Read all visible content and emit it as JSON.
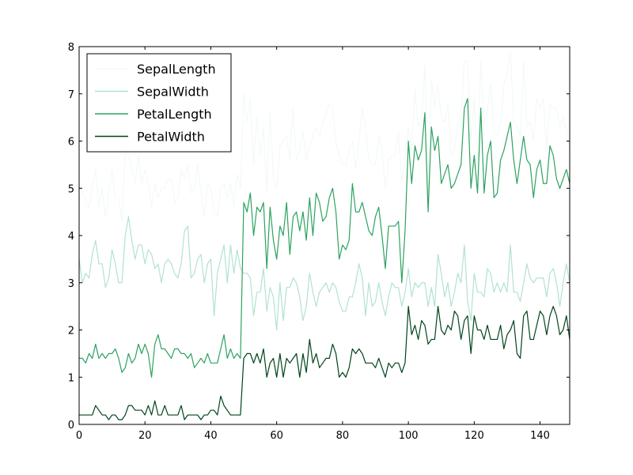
{
  "chart_data": {
    "type": "line",
    "title": "",
    "xlabel": "",
    "ylabel": "",
    "xlim": [
      0,
      149
    ],
    "ylim": [
      0,
      8
    ],
    "x_ticks": [
      "0",
      "20",
      "40",
      "60",
      "80",
      "100",
      "120",
      "140"
    ],
    "y_ticks": [
      "0",
      "1",
      "2",
      "3",
      "4",
      "5",
      "6",
      "7",
      "8"
    ],
    "grid": false,
    "legend_position": "top-left",
    "x": [
      0,
      1,
      2,
      3,
      4,
      5,
      6,
      7,
      8,
      9,
      10,
      11,
      12,
      13,
      14,
      15,
      16,
      17,
      18,
      19,
      20,
      21,
      22,
      23,
      24,
      25,
      26,
      27,
      28,
      29,
      30,
      31,
      32,
      33,
      34,
      35,
      36,
      37,
      38,
      39,
      40,
      41,
      42,
      43,
      44,
      45,
      46,
      47,
      48,
      49,
      50,
      51,
      52,
      53,
      54,
      55,
      56,
      57,
      58,
      59,
      60,
      61,
      62,
      63,
      64,
      65,
      66,
      67,
      68,
      69,
      70,
      71,
      72,
      73,
      74,
      75,
      76,
      77,
      78,
      79,
      80,
      81,
      82,
      83,
      84,
      85,
      86,
      87,
      88,
      89,
      90,
      91,
      92,
      93,
      94,
      95,
      96,
      97,
      98,
      99,
      100,
      101,
      102,
      103,
      104,
      105,
      106,
      107,
      108,
      109,
      110,
      111,
      112,
      113,
      114,
      115,
      116,
      117,
      118,
      119,
      120,
      121,
      122,
      123,
      124,
      125,
      126,
      127,
      128,
      129,
      130,
      131,
      132,
      133,
      134,
      135,
      136,
      137,
      138,
      139,
      140,
      141,
      142,
      143,
      144,
      145,
      146,
      147,
      148,
      149
    ],
    "series": [
      {
        "name": "SepalLength",
        "color": "#f2faf6",
        "values": [
          5.1,
          4.9,
          4.7,
          4.6,
          5.0,
          5.4,
          4.6,
          5.0,
          4.4,
          4.9,
          5.4,
          4.8,
          4.8,
          4.3,
          5.8,
          5.7,
          5.4,
          5.1,
          5.7,
          5.1,
          5.4,
          5.1,
          4.6,
          5.1,
          4.8,
          5.0,
          5.0,
          5.2,
          5.2,
          4.7,
          4.8,
          5.4,
          5.2,
          5.5,
          4.9,
          5.0,
          5.5,
          4.9,
          4.4,
          5.1,
          5.0,
          4.5,
          4.4,
          5.0,
          5.1,
          4.8,
          5.1,
          4.6,
          5.3,
          5.0,
          7.0,
          6.4,
          6.9,
          5.5,
          6.5,
          5.7,
          6.3,
          4.9,
          6.6,
          5.2,
          5.0,
          5.9,
          6.0,
          6.1,
          5.6,
          6.7,
          5.6,
          5.8,
          6.2,
          5.6,
          5.9,
          6.1,
          6.3,
          6.1,
          6.4,
          6.6,
          6.8,
          6.7,
          6.0,
          5.7,
          5.5,
          5.5,
          5.8,
          6.0,
          5.4,
          6.0,
          6.7,
          6.3,
          5.6,
          5.5,
          5.5,
          6.1,
          5.8,
          5.0,
          5.6,
          5.7,
          5.7,
          6.2,
          5.1,
          5.7,
          6.3,
          5.8,
          7.1,
          6.3,
          6.5,
          7.6,
          4.9,
          7.3,
          6.7,
          7.2,
          6.5,
          6.4,
          6.8,
          5.7,
          5.8,
          6.4,
          6.5,
          7.7,
          7.7,
          6.0,
          6.9,
          5.6,
          7.7,
          6.3,
          6.7,
          7.2,
          6.2,
          6.1,
          6.4,
          7.2,
          7.4,
          7.9,
          6.4,
          6.3,
          6.1,
          7.7,
          6.3,
          6.4,
          6.0,
          6.9,
          6.7,
          6.9,
          5.8,
          6.8,
          6.7,
          6.7,
          6.3,
          6.5,
          6.2,
          5.9
        ]
      },
      {
        "name": "SepalWidth",
        "color": "#b2e2d0",
        "values": [
          3.5,
          3.0,
          3.2,
          3.1,
          3.6,
          3.9,
          3.4,
          3.4,
          2.9,
          3.1,
          3.7,
          3.4,
          3.0,
          3.0,
          4.0,
          4.4,
          3.9,
          3.5,
          3.8,
          3.8,
          3.4,
          3.7,
          3.6,
          3.3,
          3.4,
          3.0,
          3.4,
          3.5,
          3.4,
          3.2,
          3.1,
          3.4,
          4.1,
          4.2,
          3.1,
          3.2,
          3.5,
          3.6,
          3.0,
          3.4,
          3.5,
          2.3,
          3.2,
          3.5,
          3.8,
          3.0,
          3.8,
          3.2,
          3.7,
          3.3,
          3.2,
          3.2,
          3.1,
          2.3,
          2.8,
          2.8,
          3.3,
          2.4,
          2.9,
          2.7,
          2.0,
          3.0,
          2.2,
          2.9,
          2.9,
          3.1,
          3.0,
          2.7,
          2.2,
          2.5,
          3.2,
          2.8,
          2.5,
          2.8,
          2.9,
          3.0,
          2.8,
          3.0,
          2.9,
          2.6,
          2.4,
          2.4,
          2.7,
          2.7,
          3.0,
          3.4,
          3.1,
          2.3,
          3.0,
          2.5,
          2.6,
          3.0,
          2.6,
          2.3,
          2.7,
          3.0,
          2.9,
          2.9,
          2.5,
          2.8,
          3.3,
          2.7,
          3.0,
          2.9,
          3.0,
          3.0,
          2.5,
          2.9,
          2.5,
          3.6,
          3.2,
          2.7,
          3.0,
          2.5,
          2.8,
          3.2,
          3.0,
          3.8,
          2.6,
          2.2,
          3.2,
          2.8,
          2.8,
          2.7,
          3.3,
          3.2,
          2.8,
          3.0,
          2.8,
          3.0,
          2.8,
          3.8,
          2.8,
          2.8,
          2.6,
          3.0,
          3.4,
          3.1,
          3.0,
          3.1,
          3.1,
          3.1,
          2.7,
          3.2,
          3.3,
          3.0,
          2.5,
          3.0,
          3.4,
          3.0
        ]
      },
      {
        "name": "PetalLength",
        "color": "#2ca25f",
        "values": [
          1.4,
          1.4,
          1.3,
          1.5,
          1.4,
          1.7,
          1.4,
          1.5,
          1.4,
          1.5,
          1.5,
          1.6,
          1.4,
          1.1,
          1.2,
          1.5,
          1.3,
          1.4,
          1.7,
          1.5,
          1.7,
          1.5,
          1.0,
          1.7,
          1.9,
          1.6,
          1.6,
          1.5,
          1.4,
          1.6,
          1.6,
          1.5,
          1.5,
          1.4,
          1.5,
          1.2,
          1.3,
          1.4,
          1.3,
          1.5,
          1.3,
          1.3,
          1.3,
          1.6,
          1.9,
          1.4,
          1.6,
          1.4,
          1.5,
          1.4,
          4.7,
          4.5,
          4.9,
          4.0,
          4.6,
          4.5,
          4.7,
          3.3,
          4.6,
          3.9,
          3.5,
          4.2,
          4.0,
          4.7,
          3.6,
          4.4,
          4.5,
          4.1,
          4.5,
          3.9,
          4.8,
          4.0,
          4.9,
          4.7,
          4.3,
          4.4,
          4.8,
          5.0,
          4.5,
          3.5,
          3.8,
          3.7,
          3.9,
          5.1,
          4.5,
          4.5,
          4.7,
          4.4,
          4.1,
          4.0,
          4.4,
          4.6,
          4.0,
          3.3,
          4.2,
          4.2,
          4.2,
          4.3,
          3.0,
          4.1,
          6.0,
          5.1,
          5.9,
          5.6,
          5.8,
          6.6,
          4.5,
          6.3,
          5.8,
          6.1,
          5.1,
          5.3,
          5.5,
          5.0,
          5.1,
          5.3,
          5.5,
          6.7,
          6.9,
          5.0,
          5.7,
          4.9,
          6.7,
          4.9,
          5.7,
          6.0,
          4.8,
          4.9,
          5.6,
          5.8,
          6.1,
          6.4,
          5.6,
          5.1,
          5.6,
          6.1,
          5.6,
          5.5,
          4.8,
          5.4,
          5.6,
          5.1,
          5.1,
          5.9,
          5.7,
          5.2,
          5.0,
          5.2,
          5.4,
          5.1
        ]
      },
      {
        "name": "PetalWidth",
        "color": "#00441b",
        "values": [
          0.2,
          0.2,
          0.2,
          0.2,
          0.2,
          0.4,
          0.3,
          0.2,
          0.2,
          0.1,
          0.2,
          0.2,
          0.1,
          0.1,
          0.2,
          0.4,
          0.4,
          0.3,
          0.3,
          0.3,
          0.2,
          0.4,
          0.2,
          0.5,
          0.2,
          0.2,
          0.4,
          0.2,
          0.2,
          0.2,
          0.2,
          0.4,
          0.1,
          0.2,
          0.2,
          0.2,
          0.2,
          0.1,
          0.2,
          0.2,
          0.3,
          0.3,
          0.2,
          0.6,
          0.4,
          0.3,
          0.2,
          0.2,
          0.2,
          0.2,
          1.4,
          1.5,
          1.5,
          1.3,
          1.5,
          1.3,
          1.6,
          1.0,
          1.3,
          1.4,
          1.0,
          1.5,
          1.0,
          1.4,
          1.3,
          1.4,
          1.5,
          1.0,
          1.5,
          1.1,
          1.8,
          1.3,
          1.5,
          1.2,
          1.3,
          1.4,
          1.4,
          1.7,
          1.5,
          1.0,
          1.1,
          1.0,
          1.2,
          1.6,
          1.5,
          1.6,
          1.5,
          1.3,
          1.3,
          1.3,
          1.2,
          1.4,
          1.2,
          1.0,
          1.3,
          1.2,
          1.3,
          1.3,
          1.1,
          1.3,
          2.5,
          1.9,
          2.1,
          1.8,
          2.2,
          2.1,
          1.7,
          1.8,
          1.8,
          2.5,
          2.0,
          1.9,
          2.1,
          2.0,
          2.4,
          2.3,
          1.8,
          2.2,
          2.3,
          1.5,
          2.3,
          2.0,
          2.0,
          1.8,
          2.1,
          1.8,
          1.8,
          1.8,
          2.1,
          1.6,
          1.9,
          2.0,
          2.2,
          1.5,
          1.4,
          2.3,
          2.4,
          1.8,
          1.8,
          2.1,
          2.4,
          2.3,
          1.9,
          2.3,
          2.5,
          2.3,
          1.9,
          2.0,
          2.3,
          1.8
        ]
      }
    ]
  }
}
